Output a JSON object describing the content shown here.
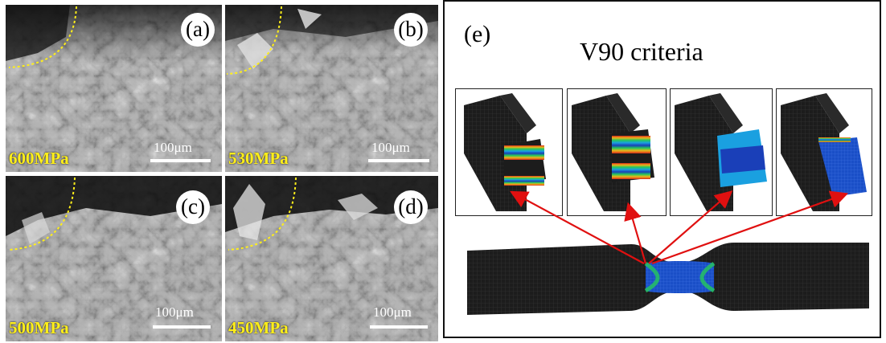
{
  "panels": [
    {
      "letter": "(a)",
      "stress": "600MPa",
      "scale": "100μm"
    },
    {
      "letter": "(b)",
      "stress": "530MPa",
      "scale": "100μm"
    },
    {
      "letter": "(c)",
      "stress": "500MPa",
      "scale": "100μm"
    },
    {
      "letter": "(d)",
      "stress": "450MPa",
      "scale": "100μm"
    }
  ],
  "panel_e": {
    "letter": "(e)",
    "title": "V90 criteria"
  },
  "colors": {
    "stress_label": "#ffef1a",
    "crack_boundary": "#ffef1a",
    "arrow": "#e01010",
    "mesh_dark": "#1c1c1c",
    "mesh_blue": "#1a4fc7"
  }
}
